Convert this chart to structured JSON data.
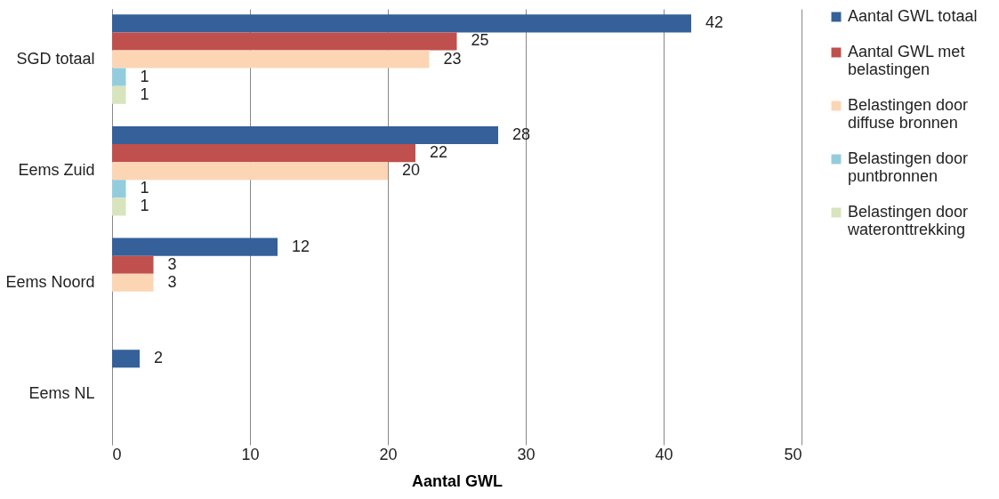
{
  "chart_data": {
    "type": "bar",
    "orientation": "horizontal",
    "xlabel": "Aantal GWL",
    "categories": [
      "SGD totaal",
      "Eems Zuid",
      "Eems Noord",
      "Eems NL"
    ],
    "series": [
      {
        "name": "Aantal GWL totaal",
        "color": "#35609a",
        "values": [
          42,
          28,
          12,
          2
        ]
      },
      {
        "name": "Aantal GWL met belastingen",
        "color": "#c0504d",
        "values": [
          25,
          22,
          3,
          null
        ]
      },
      {
        "name": "Belastingen door diffuse bronnen",
        "color": "#fcd5b5",
        "values": [
          23,
          20,
          3,
          null
        ]
      },
      {
        "name": "Belastingen door puntbronnen",
        "color": "#93cddd",
        "values": [
          1,
          1,
          null,
          null
        ]
      },
      {
        "name": "Belastingen door wateronttrekking",
        "color": "#d7e4bd",
        "values": [
          1,
          1,
          null,
          null
        ]
      }
    ],
    "xlim": [
      0,
      50
    ],
    "xticks": [
      0,
      10,
      20,
      30,
      40,
      50
    ],
    "grid": "x",
    "legend": "right",
    "data_labels": true
  }
}
